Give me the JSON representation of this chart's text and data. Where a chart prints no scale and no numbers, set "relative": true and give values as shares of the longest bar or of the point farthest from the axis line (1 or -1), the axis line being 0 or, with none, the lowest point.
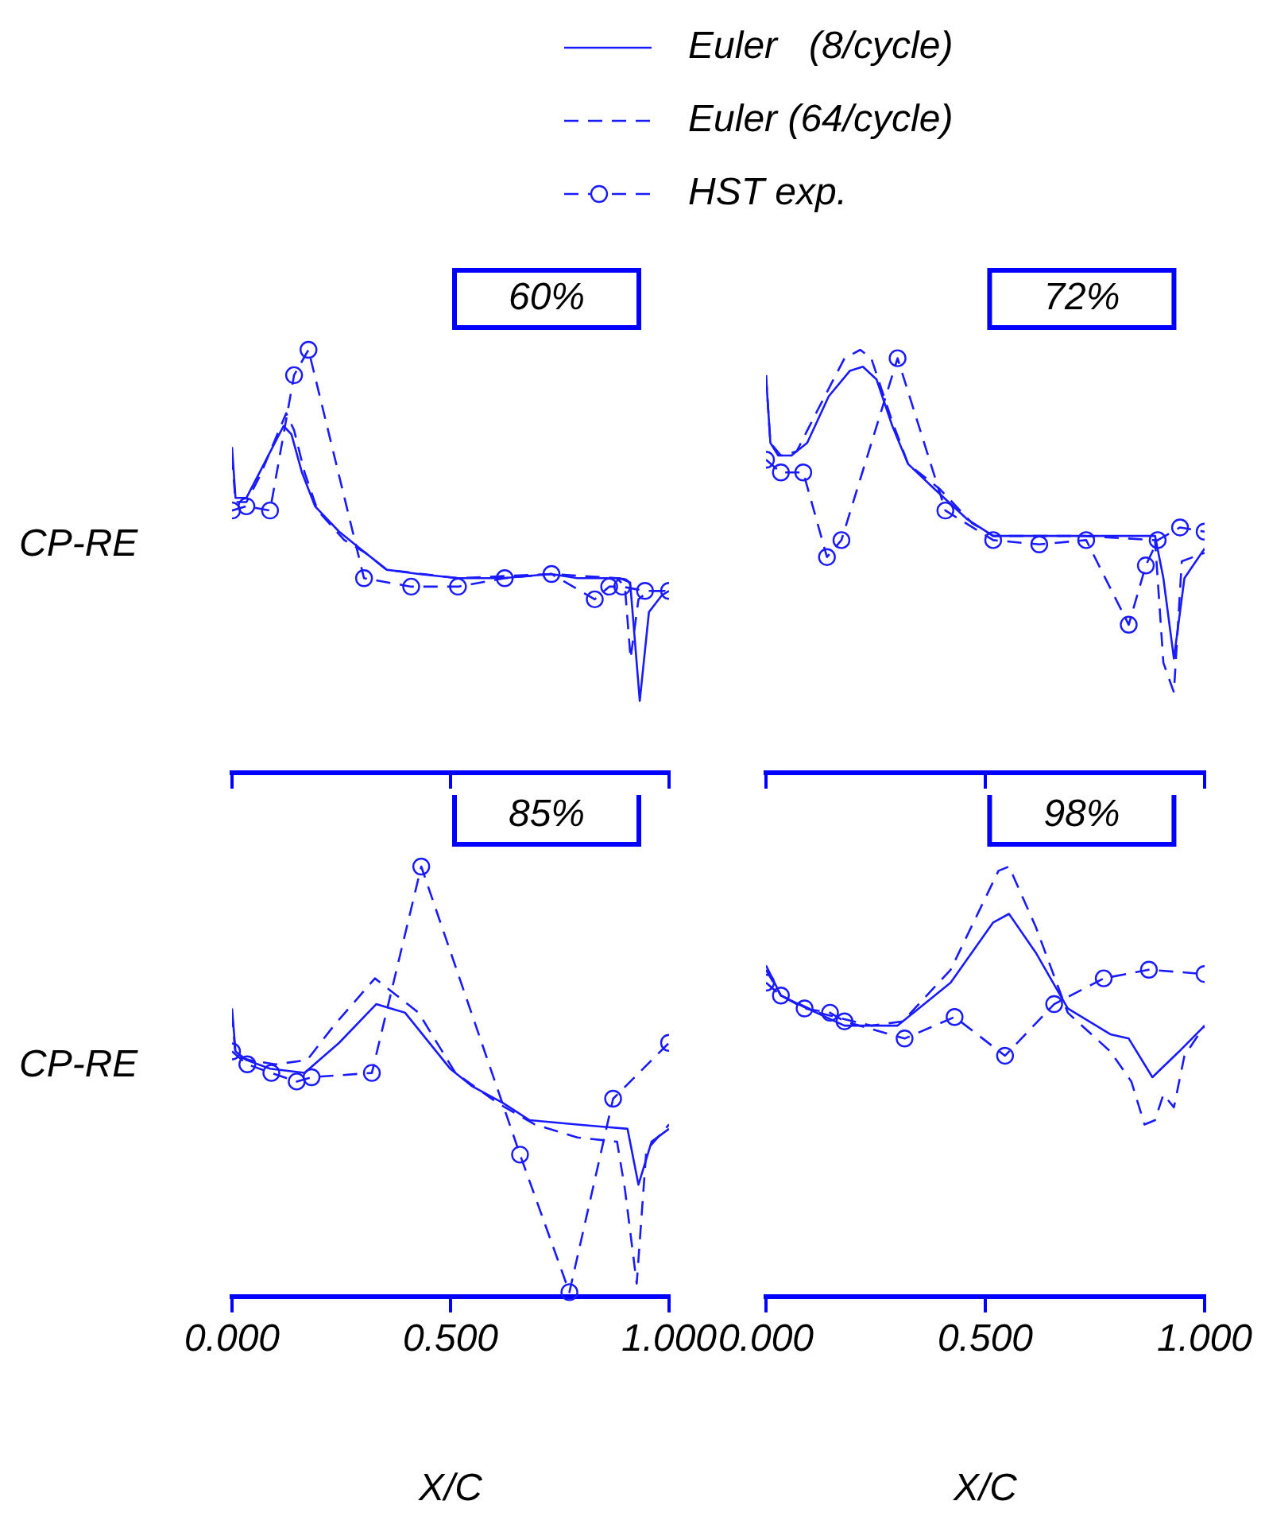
{
  "chart_data": [
    {
      "type": "line",
      "title": "60%",
      "ylabel": "CP-RE",
      "relative": true,
      "legend": "top",
      "tick_labels": false,
      "xlim": [
        0,
        1
      ],
      "xticks": [
        {
          "value": 0,
          "label": null
        },
        {
          "value": 0.5,
          "label": null
        },
        {
          "value": 1,
          "label": null
        }
      ],
      "series": [
        {
          "name": "Euler   (8/cycle)",
          "color": "#1a1aff",
          "line_style": "solid",
          "marker": "none",
          "x": [
            0,
            0.008,
            0.033,
            0.063,
            0.118,
            0.136,
            0.16,
            0.19,
            0.245,
            0.293,
            0.354,
            0.427,
            0.517,
            0.62,
            0.73,
            0.79,
            0.887,
            0.911,
            0.933,
            0.954,
            0.984,
            1.0
          ],
          "values": [
            0.77,
            0.65,
            0.65,
            0.71,
            0.82,
            0.8,
            0.71,
            0.63,
            0.57,
            0.53,
            0.48,
            0.47,
            0.46,
            0.46,
            0.47,
            0.46,
            0.46,
            0.45,
            0.17,
            0.38,
            0.42,
            0.43
          ]
        },
        {
          "name": "Euler (64/cycle)",
          "color": "#1a1aff",
          "line_style": "dashed",
          "marker": "none",
          "x": [
            0,
            0.008,
            0.033,
            0.063,
            0.124,
            0.142,
            0.166,
            0.196,
            0.257,
            0.305,
            0.354,
            0.517,
            0.73,
            0.881,
            0.899,
            0.912,
            0.93,
            0.954,
            1.0
          ],
          "values": [
            0.75,
            0.64,
            0.64,
            0.7,
            0.85,
            0.81,
            0.71,
            0.62,
            0.55,
            0.52,
            0.48,
            0.46,
            0.47,
            0.46,
            0.44,
            0.27,
            0.41,
            0.43,
            0.43
          ]
        },
        {
          "name": "HST exp.",
          "color": "#1a1aff",
          "line_style": "dashed",
          "marker": "circle",
          "x": [
            0,
            0.033,
            0.087,
            0.142,
            0.175,
            0.302,
            0.41,
            0.517,
            0.624,
            0.731,
            0.83,
            0.863,
            0.893,
            0.945,
            1.0
          ],
          "values": [
            0.62,
            0.63,
            0.62,
            0.94,
            1.0,
            0.46,
            0.44,
            0.44,
            0.46,
            0.47,
            0.41,
            0.44,
            0.44,
            0.43,
            0.43
          ]
        }
      ]
    },
    {
      "type": "line",
      "title": "72%",
      "relative": true,
      "tick_labels": false,
      "xlim": [
        0,
        1
      ],
      "xticks": [
        {
          "value": 0,
          "label": null
        },
        {
          "value": 0.5,
          "label": null
        },
        {
          "value": 1,
          "label": null
        }
      ],
      "series": [
        {
          "color": "#1a1aff",
          "line_style": "solid",
          "marker": "none",
          "x": [
            0,
            0.01,
            0.028,
            0.058,
            0.094,
            0.143,
            0.191,
            0.221,
            0.252,
            0.288,
            0.324,
            0.385,
            0.458,
            0.518,
            0.615,
            0.724,
            0.887,
            0.906,
            0.93,
            0.954,
            1.0
          ],
          "values": [
            0.94,
            0.78,
            0.75,
            0.75,
            0.78,
            0.89,
            0.95,
            0.96,
            0.93,
            0.82,
            0.73,
            0.67,
            0.6,
            0.56,
            0.56,
            0.56,
            0.56,
            0.46,
            0.27,
            0.46,
            0.53
          ]
        },
        {
          "color": "#1a1aff",
          "line_style": "dashed",
          "marker": "none",
          "x": [
            0,
            0.01,
            0.034,
            0.07,
            0.119,
            0.179,
            0.215,
            0.24,
            0.288,
            0.324,
            0.397,
            0.47,
            0.518,
            0.724,
            0.887,
            0.906,
            0.93,
            0.948,
            1.0
          ],
          "values": [
            0.94,
            0.78,
            0.75,
            0.76,
            0.86,
            0.98,
            1.0,
            0.98,
            0.83,
            0.73,
            0.67,
            0.59,
            0.56,
            0.56,
            0.55,
            0.26,
            0.19,
            0.5,
            0.52
          ]
        },
        {
          "color": "#1a1aff",
          "line_style": "dashed",
          "marker": "circle",
          "x": [
            0,
            0.034,
            0.085,
            0.139,
            0.172,
            0.3,
            0.409,
            0.518,
            0.623,
            0.73,
            0.827,
            0.866,
            0.893,
            0.944,
            1.0
          ],
          "values": [
            0.74,
            0.71,
            0.71,
            0.51,
            0.55,
            0.98,
            0.62,
            0.55,
            0.54,
            0.55,
            0.35,
            0.49,
            0.55,
            0.58,
            0.57
          ]
        }
      ]
    },
    {
      "type": "line",
      "title": "85%",
      "ylabel": "CP-RE",
      "xlabel": "X/C",
      "relative": true,
      "tick_labels": "x",
      "xlim": [
        0,
        1
      ],
      "xticks": [
        {
          "value": 0,
          "label": "0.000"
        },
        {
          "value": 0.5,
          "label": "0.500"
        },
        {
          "value": 1,
          "label": "1.000"
        }
      ],
      "series": [
        {
          "color": "#1a1aff",
          "line_style": "solid",
          "marker": "none",
          "x": [
            0,
            0.008,
            0.033,
            0.087,
            0.166,
            0.245,
            0.33,
            0.396,
            0.499,
            0.548,
            0.62,
            0.681,
            0.79,
            0.905,
            0.93,
            0.96,
            1.0
          ],
          "values": [
            0.67,
            0.57,
            0.55,
            0.53,
            0.52,
            0.59,
            0.68,
            0.66,
            0.53,
            0.49,
            0.45,
            0.41,
            0.4,
            0.39,
            0.26,
            0.36,
            0.39
          ]
        },
        {
          "color": "#1a1aff",
          "line_style": "dashed",
          "marker": "none",
          "x": [
            0,
            0.008,
            0.039,
            0.099,
            0.172,
            0.233,
            0.327,
            0.427,
            0.511,
            0.608,
            0.693,
            0.79,
            0.881,
            0.899,
            0.926,
            0.948,
            1.0
          ],
          "values": [
            0.66,
            0.56,
            0.55,
            0.54,
            0.55,
            0.63,
            0.74,
            0.66,
            0.52,
            0.45,
            0.4,
            0.37,
            0.36,
            0.25,
            0.03,
            0.34,
            0.4
          ]
        },
        {
          "color": "#1a1aff",
          "line_style": "dashed",
          "marker": "circle",
          "x": [
            0,
            0.035,
            0.09,
            0.148,
            0.182,
            0.32,
            0.433,
            0.659,
            0.772,
            0.872,
            1.0
          ],
          "values": [
            0.57,
            0.54,
            0.52,
            0.5,
            0.51,
            0.52,
            1.0,
            0.33,
            0.01,
            0.46,
            0.59
          ]
        }
      ]
    },
    {
      "type": "line",
      "title": "98%",
      "xlabel": "X/C",
      "relative": true,
      "tick_labels": "x",
      "xlim": [
        0,
        1
      ],
      "xticks": [
        {
          "value": 0,
          "label": "0.000"
        },
        {
          "value": 0.5,
          "label": "0.500"
        },
        {
          "value": 1,
          "label": "1.000"
        }
      ],
      "series": [
        {
          "color": "#1a1aff",
          "line_style": "solid",
          "marker": "none",
          "x": [
            0,
            0.034,
            0.094,
            0.179,
            0.3,
            0.421,
            0.518,
            0.554,
            0.615,
            0.688,
            0.785,
            0.827,
            0.881,
            0.942,
            1.0
          ],
          "values": [
            0.77,
            0.7,
            0.67,
            0.63,
            0.63,
            0.73,
            0.87,
            0.89,
            0.8,
            0.67,
            0.61,
            0.6,
            0.51,
            0.57,
            0.63
          ]
        },
        {
          "color": "#1a1aff",
          "line_style": "dashed",
          "marker": "none",
          "x": [
            0,
            0.034,
            0.119,
            0.24,
            0.312,
            0.421,
            0.53,
            0.554,
            0.615,
            0.688,
            0.785,
            0.833,
            0.863,
            0.887,
            0.906,
            0.93,
            0.954,
            1.0
          ],
          "values": [
            0.76,
            0.7,
            0.66,
            0.63,
            0.64,
            0.76,
            0.99,
            1.0,
            0.86,
            0.66,
            0.57,
            0.5,
            0.4,
            0.41,
            0.47,
            0.44,
            0.56,
            0.63
          ]
        },
        {
          "color": "#1a1aff",
          "line_style": "dashed",
          "marker": "circle",
          "x": [
            0,
            0.034,
            0.088,
            0.146,
            0.179,
            0.316,
            0.43,
            0.545,
            0.657,
            0.77,
            0.873,
            1.0
          ],
          "values": [
            0.73,
            0.7,
            0.67,
            0.66,
            0.64,
            0.6,
            0.65,
            0.56,
            0.68,
            0.74,
            0.76,
            0.75
          ]
        }
      ]
    }
  ]
}
